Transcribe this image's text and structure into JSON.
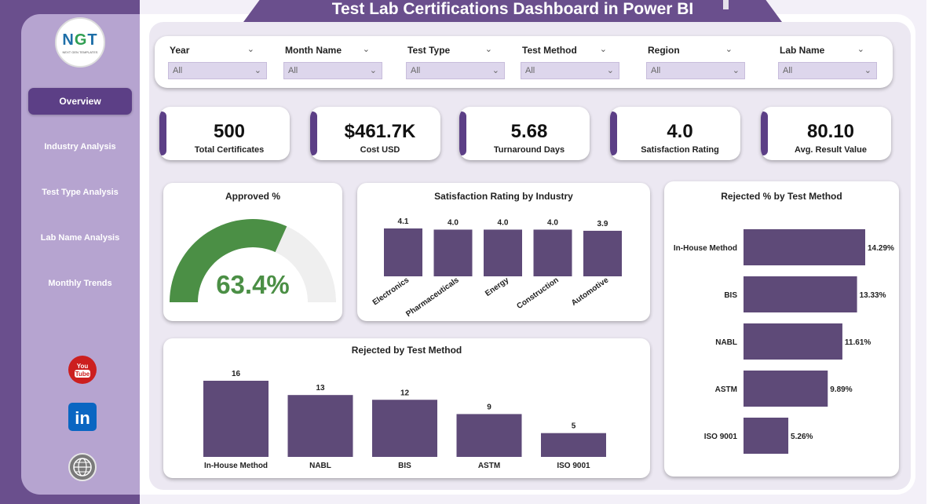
{
  "title": "Test Lab Certifications Dashboard in Power BI",
  "logo": {
    "text": "NGT",
    "subtext": "NEXT GEN TEMPLATES"
  },
  "nav": [
    {
      "label": "Overview",
      "active": true
    },
    {
      "label": "Industry Analysis",
      "active": false
    },
    {
      "label": "Test Type Analysis",
      "active": false
    },
    {
      "label": "Lab Name Analysis",
      "active": false
    },
    {
      "label": "Monthly Trends",
      "active": false
    }
  ],
  "social": {
    "youtube_label": "You Tube",
    "linkedin_label": "in"
  },
  "filters": [
    {
      "label": "Year",
      "value": "All"
    },
    {
      "label": "Month Name",
      "value": "All"
    },
    {
      "label": "Test Type",
      "value": "All"
    },
    {
      "label": "Test Method",
      "value": "All"
    },
    {
      "label": "Region",
      "value": "All"
    },
    {
      "label": "Lab Name",
      "value": "All"
    }
  ],
  "kpis": [
    {
      "value": "500",
      "label": "Total Certificates"
    },
    {
      "value": "$461.7K",
      "label": "Cost USD"
    },
    {
      "value": "5.68",
      "label": "Turnaround Days"
    },
    {
      "value": "4.0",
      "label": "Satisfaction Rating"
    },
    {
      "value": "80.10",
      "label": "Avg. Result Value"
    }
  ],
  "colors": {
    "accent": "#5c3f86",
    "bar": "#5e4a78",
    "gauge_fill": "#4b8f45",
    "gauge_track": "#efefef",
    "sidebar": "#b6a4d0"
  },
  "chart_data": [
    {
      "type": "gauge",
      "title": "Approved %",
      "value": 63.4,
      "value_label": "63.4%",
      "range": [
        0,
        100
      ]
    },
    {
      "type": "bar",
      "title": "Satisfaction Rating by Industry",
      "categories": [
        "Electronics",
        "Pharmaceuticals",
        "Energy",
        "Construction",
        "Automotive"
      ],
      "values": [
        4.1,
        4.0,
        4.0,
        4.0,
        3.9
      ],
      "labels": [
        "4.1",
        "4.0",
        "4.0",
        "4.0",
        "3.9"
      ]
    },
    {
      "type": "bar",
      "title": "Rejected by Test Method",
      "categories": [
        "In-House Method",
        "NABL",
        "BIS",
        "ASTM",
        "ISO 9001"
      ],
      "values": [
        16,
        13,
        12,
        9,
        5
      ],
      "labels": [
        "16",
        "13",
        "12",
        "9",
        "5"
      ]
    },
    {
      "type": "bar",
      "orientation": "horizontal",
      "title": "Rejected % by Test Method",
      "categories": [
        "In-House Method",
        "BIS",
        "NABL",
        "ASTM",
        "ISO 9001"
      ],
      "values": [
        14.29,
        13.33,
        11.61,
        9.89,
        5.26
      ],
      "labels": [
        "14.29%",
        "13.33%",
        "11.61%",
        "9.89%",
        "5.26%"
      ]
    }
  ]
}
